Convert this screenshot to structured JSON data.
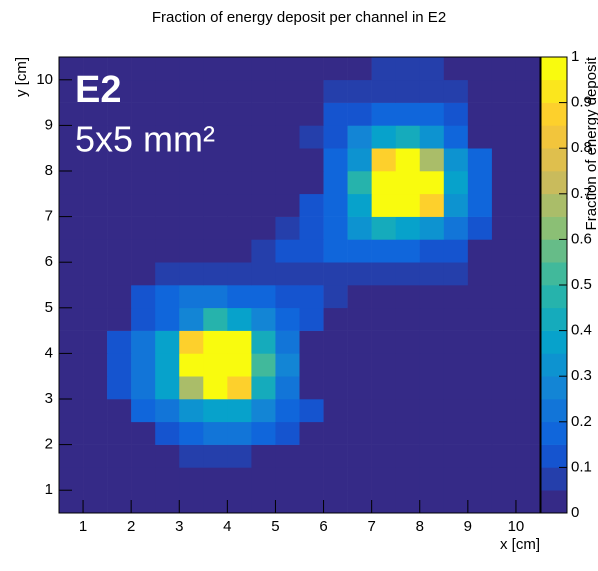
{
  "chart_data": {
    "type": "heatmap",
    "title": "Fraction of energy deposit per channel in E2",
    "x_label": "x [cm]",
    "y_label": "y [cm]",
    "z_label": "Fraction of energy deposit",
    "annotations": [
      "E2",
      "5x5 mm²"
    ],
    "xbins": [
      0.5,
      1,
      1.5,
      2,
      2.5,
      3,
      3.5,
      4,
      4.5,
      5,
      5.5,
      6,
      6.5,
      7,
      7.5,
      8,
      8.5,
      9,
      9.5,
      10,
      10.5
    ],
    "ybins": [
      0.5,
      1,
      1.5,
      2,
      2.5,
      3,
      3.5,
      4,
      4.5,
      5,
      5.5,
      6,
      6.5,
      7,
      7.5,
      8,
      8.5,
      9,
      9.5,
      10,
      10.5
    ],
    "xlim": [
      0.5,
      10.5
    ],
    "ylim": [
      0.5,
      10.5
    ],
    "zlim": [
      0,
      1
    ],
    "xticks": [
      1,
      2,
      3,
      4,
      5,
      6,
      7,
      8,
      9,
      10
    ],
    "yticks": [
      1,
      2,
      3,
      4,
      5,
      6,
      7,
      8,
      9,
      10
    ],
    "zticks": [
      0,
      0.1,
      0.2,
      0.3,
      0.4,
      0.5,
      0.6,
      0.7,
      0.8,
      0.9,
      1
    ],
    "levels": 20,
    "colorscale": [
      "#352a87",
      "#0f5cdd",
      "#1481d6",
      "#06a4ca",
      "#2eb7a4",
      "#87bf77",
      "#d1bb59",
      "#fec832",
      "#f9fb0e"
    ],
    "z": [
      [
        0.03,
        0.03,
        0.03,
        0.03,
        0.03,
        0.03,
        0.03,
        0.03,
        0.03,
        0.03,
        0.03,
        0.03,
        0.03,
        0.03,
        0.03,
        0.03,
        0.03,
        0.03,
        0.03,
        0.03
      ],
      [
        0.03,
        0.03,
        0.03,
        0.03,
        0.03,
        0.03,
        0.03,
        0.03,
        0.03,
        0.03,
        0.03,
        0.03,
        0.03,
        0.03,
        0.03,
        0.03,
        0.03,
        0.03,
        0.03,
        0.03
      ],
      [
        0.03,
        0.03,
        0.03,
        0.03,
        0.03,
        0.08,
        0.08,
        0.08,
        0.03,
        0.03,
        0.03,
        0.03,
        0.03,
        0.03,
        0.03,
        0.03,
        0.03,
        0.03,
        0.03,
        0.03
      ],
      [
        0.03,
        0.03,
        0.03,
        0.03,
        0.1,
        0.15,
        0.22,
        0.22,
        0.15,
        0.12,
        0.03,
        0.03,
        0.03,
        0.03,
        0.03,
        0.03,
        0.03,
        0.03,
        0.03,
        0.03
      ],
      [
        0.03,
        0.03,
        0.03,
        0.15,
        0.2,
        0.3,
        0.35,
        0.35,
        0.25,
        0.18,
        0.1,
        0.03,
        0.03,
        0.03,
        0.03,
        0.03,
        0.03,
        0.03,
        0.03,
        0.03
      ],
      [
        0.03,
        0.03,
        0.12,
        0.2,
        0.38,
        0.65,
        1,
        0.85,
        0.4,
        0.2,
        0.03,
        0.03,
        0.03,
        0.03,
        0.03,
        0.03,
        0.03,
        0.03,
        0.03,
        0.03
      ],
      [
        0.03,
        0.03,
        0.12,
        0.2,
        0.35,
        1,
        1,
        1,
        0.5,
        0.25,
        0.03,
        0.03,
        0.03,
        0.03,
        0.03,
        0.03,
        0.03,
        0.03,
        0.03,
        0.03
      ],
      [
        0.03,
        0.03,
        0.12,
        0.2,
        0.35,
        0.85,
        1,
        1,
        0.4,
        0.2,
        0.03,
        0.03,
        0.03,
        0.03,
        0.03,
        0.03,
        0.03,
        0.03,
        0.03,
        0.03
      ],
      [
        0.03,
        0.03,
        0.03,
        0.1,
        0.18,
        0.25,
        0.45,
        0.35,
        0.25,
        0.18,
        0.1,
        0.03,
        0.03,
        0.03,
        0.03,
        0.03,
        0.03,
        0.03,
        0.03,
        0.03
      ],
      [
        0.03,
        0.03,
        0.03,
        0.1,
        0.15,
        0.2,
        0.22,
        0.18,
        0.15,
        0.12,
        0.1,
        0.08,
        0.03,
        0.03,
        0.03,
        0.03,
        0.03,
        0.03,
        0.03,
        0.03
      ],
      [
        0.03,
        0.03,
        0.03,
        0.03,
        0.08,
        0.08,
        0.08,
        0.08,
        0.08,
        0.08,
        0.08,
        0.08,
        0.08,
        0.08,
        0.08,
        0.08,
        0.08,
        0.03,
        0.03,
        0.03
      ],
      [
        0.03,
        0.03,
        0.03,
        0.03,
        0.03,
        0.03,
        0.03,
        0.03,
        0.08,
        0.1,
        0.12,
        0.15,
        0.18,
        0.18,
        0.15,
        0.12,
        0.1,
        0.03,
        0.03,
        0.03
      ],
      [
        0.03,
        0.03,
        0.03,
        0.03,
        0.03,
        0.03,
        0.03,
        0.03,
        0.03,
        0.08,
        0.1,
        0.15,
        0.3,
        0.4,
        0.38,
        0.3,
        0.2,
        0.12,
        0.03,
        0.03
      ],
      [
        0.03,
        0.03,
        0.03,
        0.03,
        0.03,
        0.03,
        0.03,
        0.03,
        0.03,
        0.03,
        0.1,
        0.15,
        0.35,
        1,
        1,
        0.85,
        0.3,
        0.15,
        0.03,
        0.03
      ],
      [
        0.03,
        0.03,
        0.03,
        0.03,
        0.03,
        0.03,
        0.03,
        0.03,
        0.03,
        0.03,
        0.03,
        0.15,
        0.45,
        1,
        1,
        1,
        0.35,
        0.18,
        0.03,
        0.03
      ],
      [
        0.03,
        0.03,
        0.03,
        0.03,
        0.03,
        0.03,
        0.03,
        0.03,
        0.03,
        0.03,
        0.03,
        0.15,
        0.3,
        0.85,
        1,
        0.65,
        0.3,
        0.15,
        0.03,
        0.03
      ],
      [
        0.03,
        0.03,
        0.03,
        0.03,
        0.03,
        0.03,
        0.03,
        0.03,
        0.03,
        0.03,
        0.08,
        0.12,
        0.25,
        0.35,
        0.4,
        0.3,
        0.15,
        0.03,
        0.03,
        0.03
      ],
      [
        0.03,
        0.03,
        0.03,
        0.03,
        0.03,
        0.03,
        0.03,
        0.03,
        0.03,
        0.03,
        0.03,
        0.1,
        0.12,
        0.15,
        0.15,
        0.15,
        0.1,
        0.03,
        0.03,
        0.03
      ],
      [
        0.03,
        0.03,
        0.03,
        0.03,
        0.03,
        0.03,
        0.03,
        0.03,
        0.03,
        0.03,
        0.03,
        0.08,
        0.08,
        0.08,
        0.08,
        0.08,
        0.08,
        0.03,
        0.03,
        0.03
      ],
      [
        0.03,
        0.03,
        0.03,
        0.03,
        0.03,
        0.03,
        0.03,
        0.03,
        0.03,
        0.03,
        0.03,
        0.03,
        0.03,
        0.08,
        0.08,
        0.08,
        0.03,
        0.03,
        0.03,
        0.03
      ]
    ]
  }
}
